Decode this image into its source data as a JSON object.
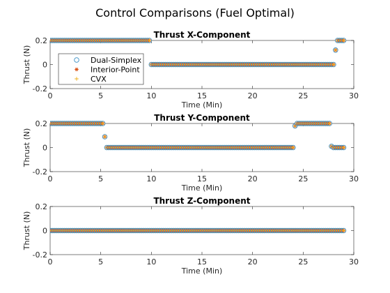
{
  "figure_title": "Control Comparisons (Fuel Optimal)",
  "legend": {
    "placement": "top-left",
    "entries": [
      {
        "label": "Dual-Simplex",
        "marker": "circle",
        "color": "#3a8fc4"
      },
      {
        "label": "Interior-Point",
        "marker": "asterisk",
        "color": "#d95319"
      },
      {
        "label": "CVX",
        "marker": "plus",
        "color": "#edb120"
      }
    ]
  },
  "chart_data": [
    {
      "type": "scatter",
      "title": "Thrust X-Component",
      "xlabel": "Time (Min)",
      "ylabel": "Thrust (N)",
      "xlim": [
        0,
        30
      ],
      "ylim": [
        -0.2,
        0.2
      ],
      "xticks": [
        "0",
        "5",
        "10",
        "15",
        "20",
        "25",
        "30"
      ],
      "yticks": [
        "-0.2",
        "0",
        "0.2"
      ],
      "grid": false,
      "segments": [
        {
          "x_start": 0.0,
          "x_end": 9.8,
          "y": 0.2
        },
        {
          "x_start": 10.0,
          "x_end": 28.0,
          "y": 0.0
        },
        {
          "x_start": 28.2,
          "x_end": 28.2,
          "y": 0.12
        },
        {
          "x_start": 28.4,
          "x_end": 29.0,
          "y": 0.2
        }
      ],
      "step": 0.2,
      "series": [
        {
          "name": "Dual-Simplex"
        },
        {
          "name": "Interior-Point"
        },
        {
          "name": "CVX"
        }
      ]
    },
    {
      "type": "scatter",
      "title": "Thrust Y-Component",
      "xlabel": "Time (Min)",
      "ylabel": "Thrust (N)",
      "xlim": [
        0,
        30
      ],
      "ylim": [
        -0.2,
        0.2
      ],
      "xticks": [
        "0",
        "5",
        "10",
        "15",
        "20",
        "25",
        "30"
      ],
      "yticks": [
        "-0.2",
        "0",
        "0.2"
      ],
      "grid": false,
      "segments": [
        {
          "x_start": 0.0,
          "x_end": 5.2,
          "y": 0.2
        },
        {
          "x_start": 5.4,
          "x_end": 5.4,
          "y": 0.09
        },
        {
          "x_start": 5.6,
          "x_end": 24.0,
          "y": 0.0
        },
        {
          "x_start": 24.2,
          "x_end": 24.2,
          "y": 0.18
        },
        {
          "x_start": 24.4,
          "x_end": 27.6,
          "y": 0.2
        },
        {
          "x_start": 27.8,
          "x_end": 27.8,
          "y": 0.01
        },
        {
          "x_start": 28.0,
          "x_end": 29.0,
          "y": 0.0
        }
      ],
      "step": 0.2,
      "series": [
        {
          "name": "Dual-Simplex"
        },
        {
          "name": "Interior-Point"
        },
        {
          "name": "CVX"
        }
      ]
    },
    {
      "type": "scatter",
      "title": "Thrust Z-Component",
      "xlabel": "Time (Min)",
      "ylabel": "Thrust (N)",
      "xlim": [
        0,
        30
      ],
      "ylim": [
        -0.2,
        0.2
      ],
      "xticks": [
        "0",
        "5",
        "10",
        "15",
        "20",
        "25",
        "30"
      ],
      "yticks": [
        "-0.2",
        "0",
        "0.2"
      ],
      "grid": false,
      "segments": [
        {
          "x_start": 0.0,
          "x_end": 29.0,
          "y": 0.0
        }
      ],
      "step": 0.2,
      "series": [
        {
          "name": "Dual-Simplex"
        },
        {
          "name": "Interior-Point"
        },
        {
          "name": "CVX"
        }
      ]
    }
  ]
}
